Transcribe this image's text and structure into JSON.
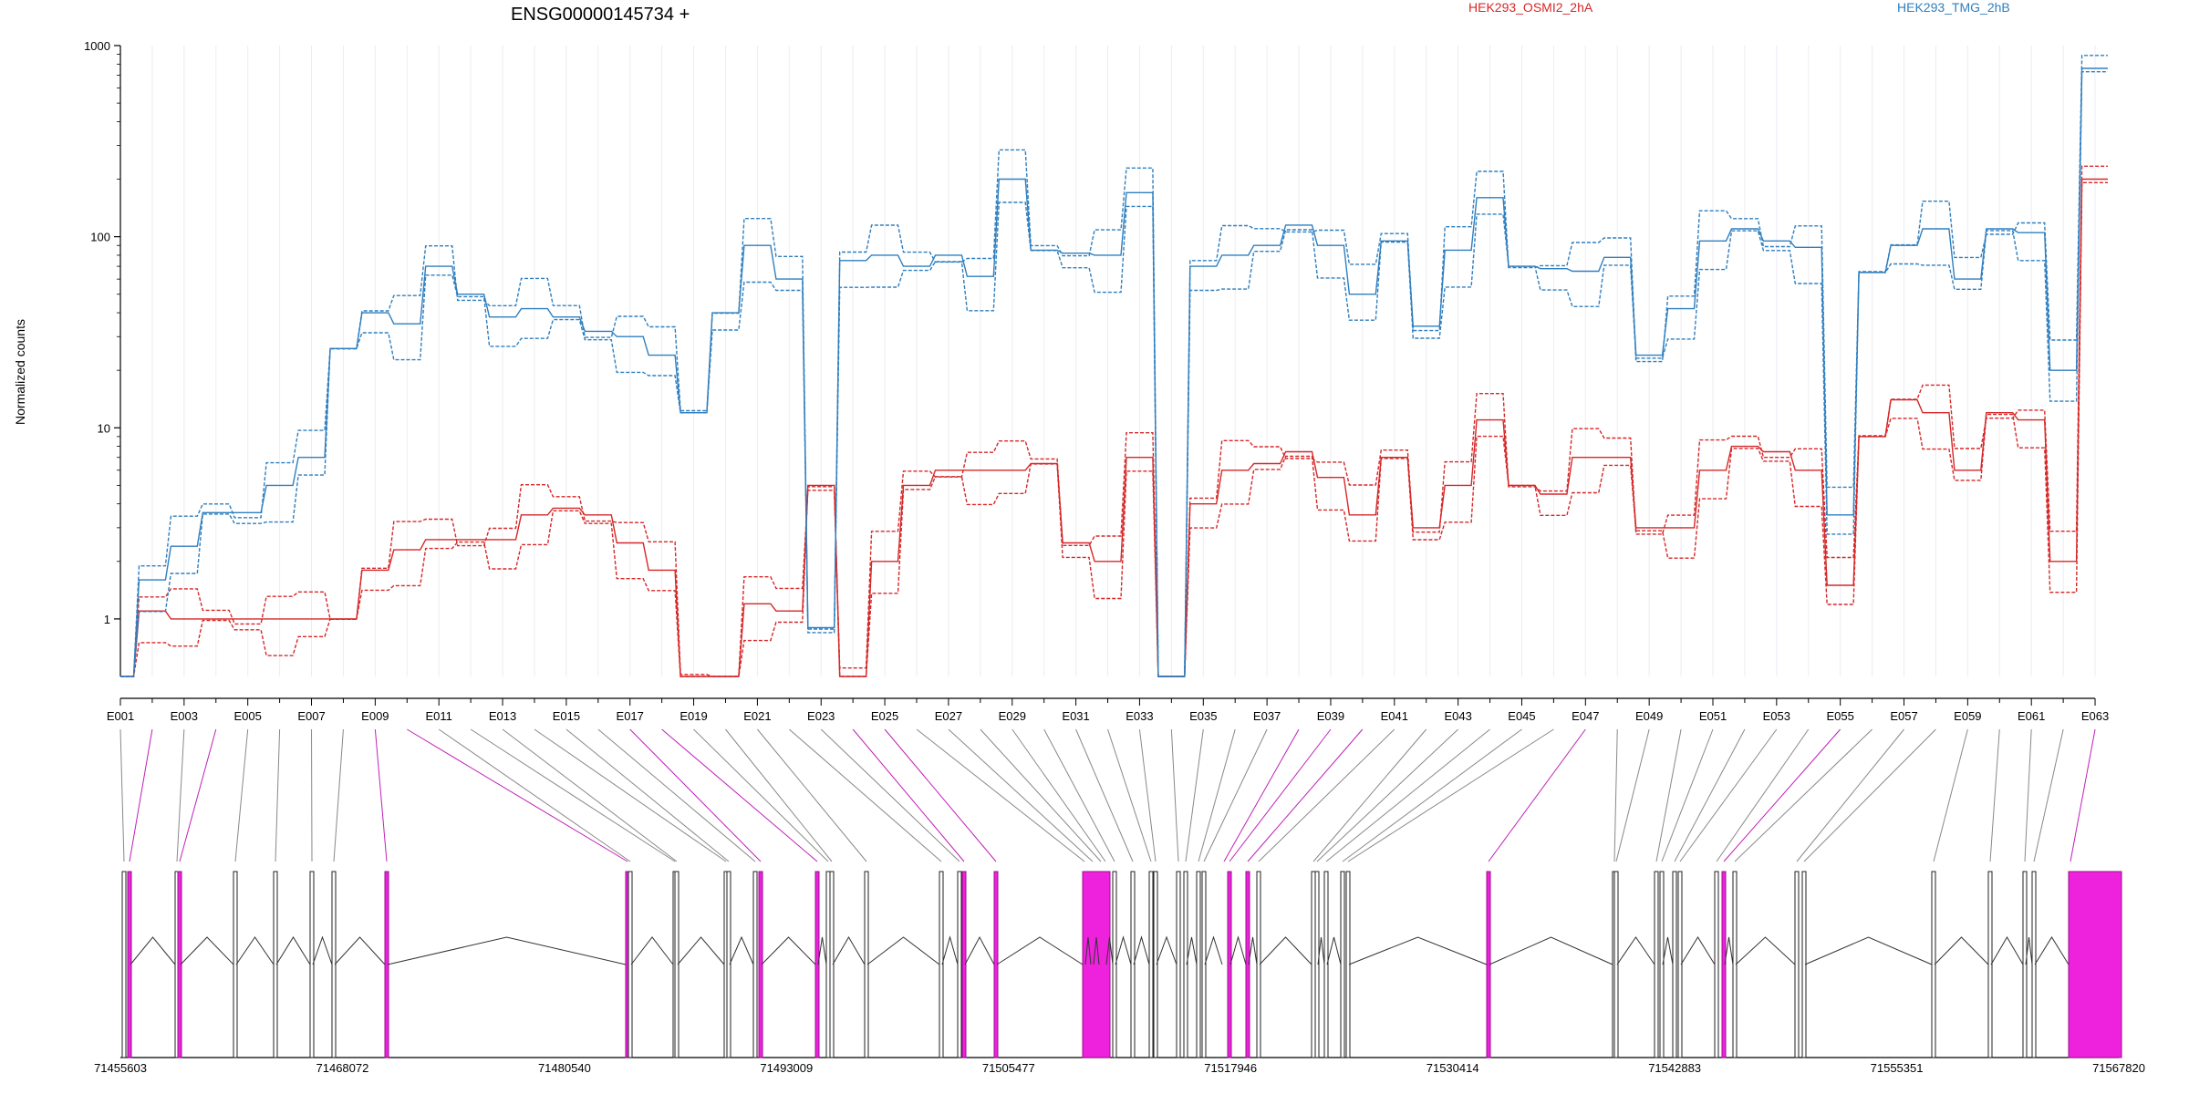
{
  "chart_data": {
    "type": "line",
    "title": "ENSG00000145734 +",
    "ylabel": "Normalized counts",
    "yscale": "log",
    "ylim": [
      0.5,
      1000
    ],
    "yticks": [
      "1",
      "10",
      "100",
      "1000"
    ],
    "legend": [
      {
        "label": "HEK293_OSMI2_2hA",
        "color": "#d62728"
      },
      {
        "label": "HEK293_TMG_2hB",
        "color": "#2f7fbf"
      }
    ],
    "exon_labels": [
      "E001",
      "E003",
      "E005",
      "E007",
      "E009",
      "E011",
      "E013",
      "E015",
      "E017",
      "E019",
      "E021",
      "E023",
      "E025",
      "E027",
      "E029",
      "E031",
      "E033",
      "E035",
      "E037",
      "E039",
      "E041",
      "E043",
      "E045",
      "E047",
      "E049",
      "E051",
      "E053",
      "E055",
      "E057",
      "E059",
      "E061",
      "E063"
    ],
    "genomic_ticks": [
      "71455603",
      "71468072",
      "71480540",
      "71493009",
      "71505477",
      "71517946",
      "71530414",
      "71542883",
      "71555351",
      "71567820"
    ],
    "blue_profile": [
      0.5,
      1.6,
      2.4,
      3.6,
      3.6,
      5.0,
      7.0,
      26,
      40,
      35,
      70,
      50,
      38,
      42,
      38,
      32,
      30,
      24,
      12,
      40,
      90,
      60,
      0.9,
      75,
      80,
      70,
      80,
      62,
      200,
      85,
      82,
      80,
      170,
      0.5,
      70,
      80,
      90,
      115,
      90,
      50,
      95,
      34,
      85,
      160,
      70,
      68,
      66,
      78,
      24,
      42,
      95,
      110,
      95,
      88,
      3.5,
      65,
      90,
      110,
      60,
      110,
      105,
      20,
      760
    ],
    "red_profile": [
      0.5,
      1.1,
      1.0,
      1.0,
      1.0,
      1.0,
      1.0,
      1.0,
      1.8,
      2.3,
      2.6,
      2.6,
      2.6,
      3.5,
      3.8,
      3.5,
      2.5,
      1.8,
      0.5,
      0.5,
      1.2,
      1.1,
      5.0,
      0.5,
      2.0,
      5.0,
      6.0,
      6.0,
      6.0,
      6.5,
      2.5,
      2.0,
      7.0,
      0.5,
      4.0,
      6.0,
      6.5,
      7.5,
      5.5,
      3.5,
      7.0,
      3.0,
      5.0,
      11.0,
      5.0,
      4.5,
      7.0,
      7.0,
      3.0,
      3.0,
      6.0,
      8.0,
      7.5,
      6.0,
      1.5,
      9.0,
      14.0,
      12.0,
      6.0,
      12.0,
      11.0,
      2.0,
      200
    ]
  }
}
